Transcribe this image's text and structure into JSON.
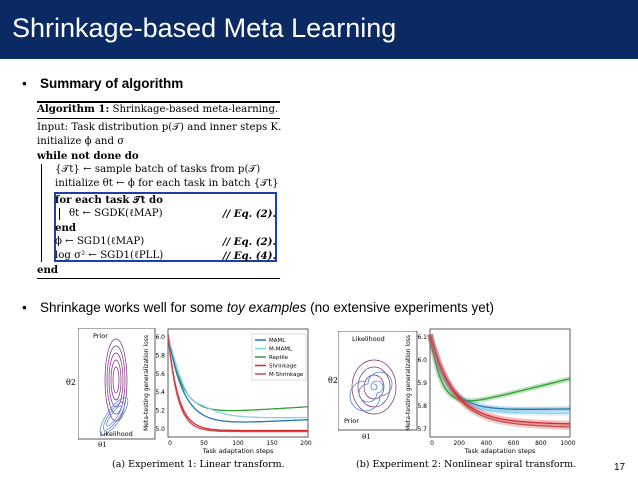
{
  "slide": {
    "title": "Shrinkage-based Meta Learning",
    "page_number": "17",
    "bullet1": {
      "label": "Summary of algorithm"
    },
    "bullet2": {
      "prefix": "Shrinkage works well for some ",
      "emphasis": "toy examples",
      "suffix": " (no extensive experiments yet)"
    }
  },
  "algorithm": {
    "header_label": "Algorithm 1:",
    "header_name": "Shrinkage-based meta-learning.",
    "lines": [
      "Input: Task distribution p(𝒯) and inner steps K.",
      "initialize ϕ and σ",
      "while not done do",
      "{𝒯t} ← sample batch of tasks from p(𝒯)",
      "initialize θt ← ϕ for each task in batch {𝒯t}",
      "for each task 𝒯t do",
      "θt ← SGDK(ℓMAP)",
      "end",
      "ϕ ← SGD1(ℓMAP)",
      "log σ² ← SGD1(ℓPLL)",
      "end"
    ],
    "eq_refs": [
      "// Eq. (2).",
      "// Eq. (2).",
      "// Eq. (4)."
    ]
  },
  "figures": {
    "legend": [
      "MAML",
      "M-MAML",
      "Reptile",
      "Shrinkage",
      "M-Shrinkage"
    ],
    "colors": {
      "MAML": "#1f77b4",
      "M-MAML": "#87ceeb",
      "Reptile": "#2ca02c",
      "Shrinkage": "#d62728",
      "M-Shrinkage": "#c44e52"
    },
    "left": {
      "contour_labels": {
        "prior": "Prior",
        "likelihood": "Likelihood",
        "theta2": "θ2",
        "theta1": "θ1"
      },
      "ylabel": "Meta-testing generalization loss",
      "xlabel": "Task adaptation steps",
      "yticks": [
        "6.0",
        "5.8",
        "5.6",
        "5.4",
        "5.2",
        "5.0"
      ],
      "xticks": [
        "0",
        "50",
        "100",
        "150",
        "200"
      ],
      "caption": "(a) Experiment 1: Linear transform."
    },
    "right": {
      "contour_labels": {
        "prior": "Prior",
        "likelihood": "Likelihood",
        "theta2": "θ2",
        "theta1": "θ1"
      },
      "ylabel": "Meta-testing generalization loss",
      "xlabel": "Task adaptation steps",
      "yticks": [
        "6.1",
        "6.0",
        "5.9",
        "5.8",
        "5.7"
      ],
      "xticks": [
        "0",
        "200",
        "400",
        "600",
        "800",
        "1000"
      ],
      "caption": "(b) Experiment 2: Nonlinear spiral transform."
    }
  }
}
